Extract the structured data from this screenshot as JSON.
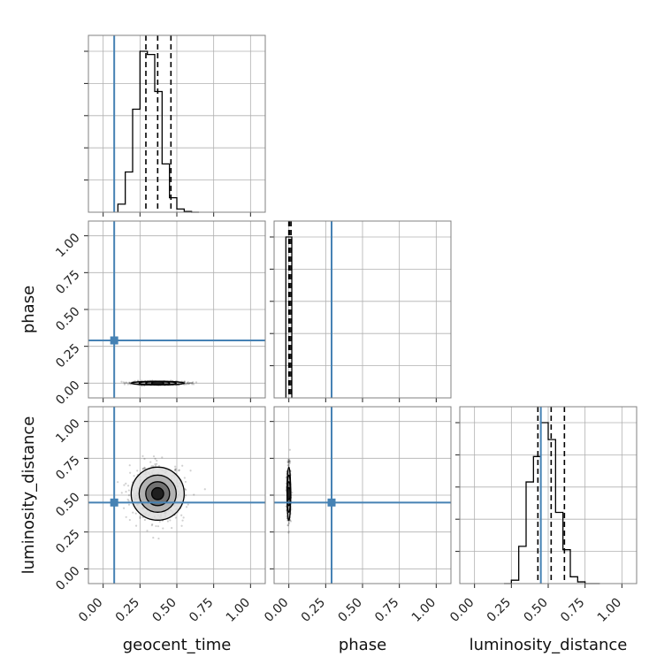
{
  "chart_data": {
    "type": "corner",
    "grid": true,
    "parameters": [
      "geocent_time",
      "phase",
      "luminosity_distance"
    ],
    "axis_range": [
      -0.1,
      1.1
    ],
    "tick_values": [
      0.0,
      0.25,
      0.5,
      0.75,
      1.0
    ],
    "tick_labels": [
      "0.00",
      "0.25",
      "0.50",
      "0.75",
      "1.00"
    ],
    "colors": {
      "truth": "#4682b4",
      "hist": "#000000",
      "grid": "#b0b0b0",
      "frame": "#808080"
    },
    "truth_values": {
      "geocent_time": 0.075,
      "phase": 0.29,
      "luminosity_distance": 0.45
    },
    "quantiles": {
      "geocent_time": [
        0.29,
        0.37,
        0.46
      ],
      "phase": [
        0.0,
        0.005,
        0.015
      ],
      "luminosity_distance": [
        0.43,
        0.52,
        0.61
      ]
    },
    "histograms": {
      "geocent_time": {
        "bin_edges": [
          0.1,
          0.15,
          0.2,
          0.25,
          0.3,
          0.35,
          0.4,
          0.45,
          0.5,
          0.55,
          0.6,
          0.65
        ],
        "counts": [
          0.05,
          0.25,
          0.64,
          1.0,
          0.98,
          0.75,
          0.3,
          0.09,
          0.02,
          0.005,
          0
        ]
      },
      "phase": {
        "bin_edges": [
          -0.02,
          0.0,
          0.02
        ],
        "counts": [
          1.0,
          1.0
        ]
      },
      "luminosity_distance": {
        "bin_edges": [
          0.2,
          0.25,
          0.3,
          0.35,
          0.4,
          0.45,
          0.5,
          0.55,
          0.6,
          0.65,
          0.7,
          0.75,
          0.8,
          0.85
        ],
        "counts": [
          0.0,
          0.02,
          0.22,
          0.6,
          0.75,
          0.95,
          0.85,
          0.42,
          0.2,
          0.04,
          0.01,
          0.0,
          0.0
        ]
      }
    },
    "scatter_2d": [
      {
        "x": "geocent_time",
        "y": "phase",
        "center": [
          0.37,
          0.0
        ],
        "spread": [
          0.09,
          0.006
        ]
      },
      {
        "x": "geocent_time",
        "y": "luminosity_distance",
        "center": [
          0.37,
          0.51
        ],
        "spread": [
          0.09,
          0.09
        ]
      },
      {
        "x": "phase",
        "y": "luminosity_distance",
        "center": [
          0.0,
          0.51
        ],
        "spread": [
          0.006,
          0.09
        ]
      }
    ]
  }
}
